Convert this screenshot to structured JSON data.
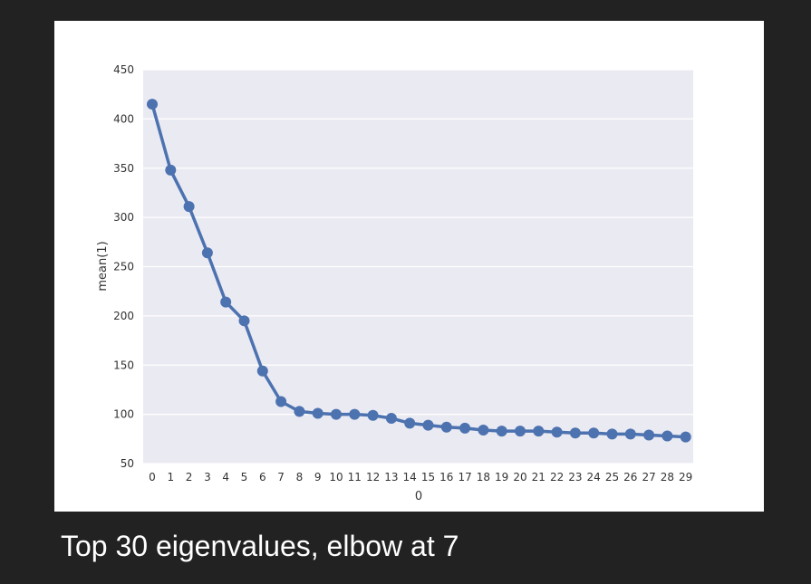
{
  "caption": "Top 30 eigenvalues, elbow at 7",
  "colors": {
    "page_background": "#222222",
    "figure_background": "#ffffff",
    "plot_background": "#eaeaf2",
    "grid": "#ffffff",
    "series": "#4c72b0",
    "text": "#333333"
  },
  "chart_data": {
    "type": "line",
    "title": "",
    "xlabel": "0",
    "ylabel": "mean(1)",
    "ylim": [
      50,
      450
    ],
    "yticks": [
      50,
      100,
      150,
      200,
      250,
      300,
      350,
      400,
      450
    ],
    "categories": [
      "0",
      "1",
      "2",
      "3",
      "4",
      "5",
      "6",
      "7",
      "8",
      "9",
      "10",
      "11",
      "12",
      "13",
      "14",
      "15",
      "16",
      "17",
      "18",
      "19",
      "20",
      "21",
      "22",
      "23",
      "24",
      "25",
      "26",
      "27",
      "28",
      "29"
    ],
    "grid": "horizontal",
    "legend": "none",
    "markers": true,
    "series": [
      {
        "values": [
          415,
          348,
          311,
          264,
          214,
          195,
          144,
          113,
          103,
          101,
          100,
          100,
          99,
          96,
          91,
          89,
          87,
          86,
          84,
          83,
          83,
          83,
          82,
          81,
          81,
          80,
          80,
          79,
          78,
          77
        ]
      }
    ]
  }
}
